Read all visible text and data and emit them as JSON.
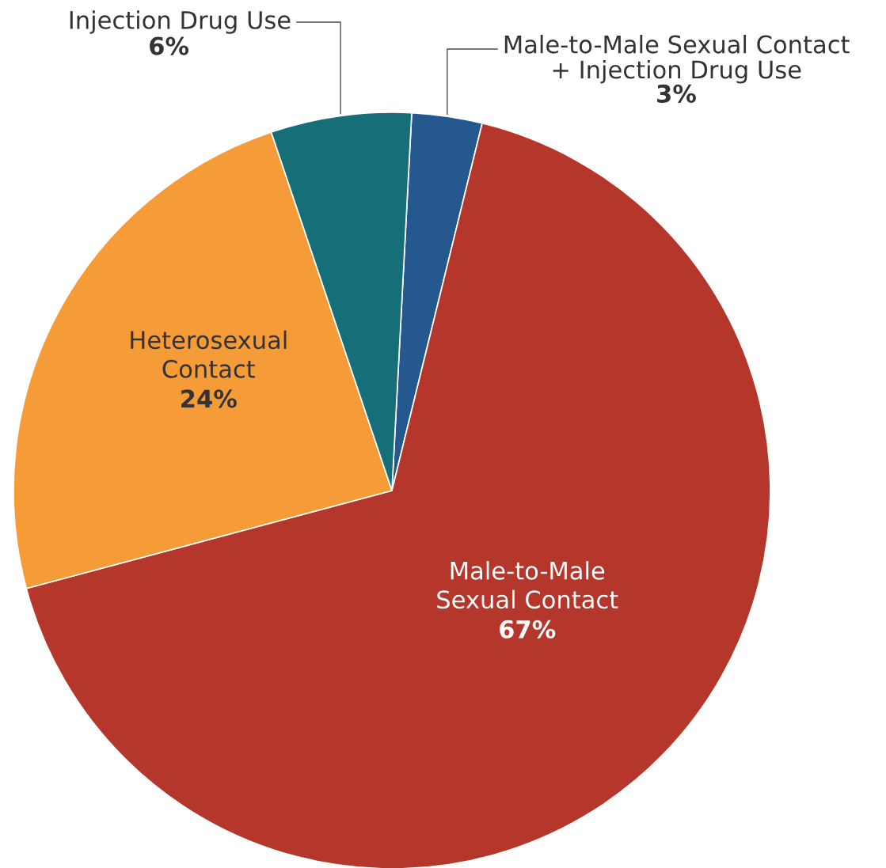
{
  "chart_data": {
    "type": "pie",
    "categories": [
      "Male-to-Male Sexual Contact\n+ Injection Drug Use",
      "Male-to-Male\nSexual Contact",
      "Heterosexual\nContact",
      "Injection Drug Use"
    ],
    "values": [
      3,
      67,
      24,
      6
    ],
    "value_labels": [
      "3%",
      "67%",
      "24%",
      "6%"
    ],
    "colors": [
      "#24588f",
      "#b5362a",
      "#f59b38",
      "#156e78"
    ]
  }
}
